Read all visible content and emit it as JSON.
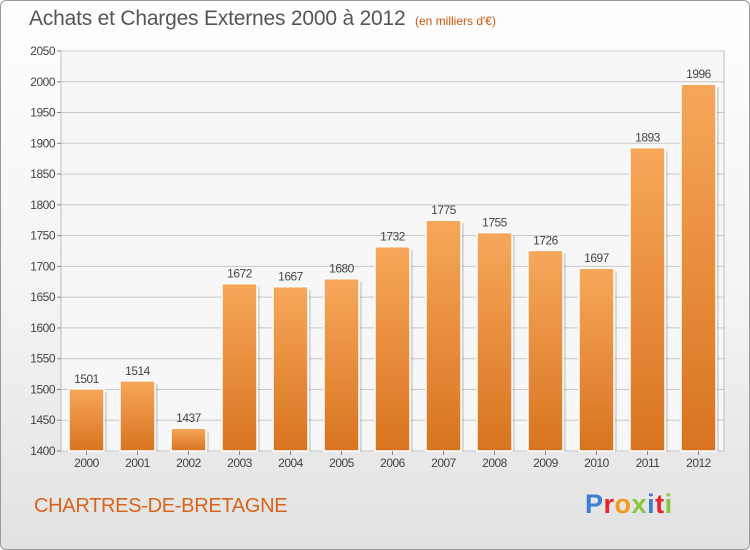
{
  "header": {
    "title": "Achats et Charges Externes 2000 à 2012",
    "subtitle": "(en milliers d'€)"
  },
  "footer": {
    "commune": "CHARTRES-DE-BRETAGNE",
    "logo_text": "Proxiti",
    "logo_colors": [
      "#3a7fd5",
      "#e6262d",
      "#f29a1e",
      "#8cc63f",
      "#3a7fd5",
      "#e6262d",
      "#8cc63f"
    ]
  },
  "colors": {
    "bar_top": "#f7a75a",
    "bar_bottom": "#d8741f",
    "grid": "#c8c8c8",
    "axis_text": "#444444"
  },
  "chart_data": {
    "type": "bar",
    "categories": [
      "2000",
      "2001",
      "2002",
      "2003",
      "2004",
      "2005",
      "2006",
      "2007",
      "2008",
      "2009",
      "2010",
      "2011",
      "2012"
    ],
    "values": [
      1501,
      1514,
      1437,
      1672,
      1667,
      1680,
      1732,
      1775,
      1755,
      1726,
      1697,
      1893,
      1996
    ],
    "title": "Achats et Charges Externes 2000 à 2012",
    "subtitle": "(en milliers d'€)",
    "xlabel": "",
    "ylabel": "",
    "ylim": [
      1400,
      2050
    ],
    "yticks": [
      1400,
      1450,
      1500,
      1550,
      1600,
      1650,
      1700,
      1750,
      1800,
      1850,
      1900,
      1950,
      2000,
      2050
    ],
    "grid": true,
    "data_labels": true
  }
}
